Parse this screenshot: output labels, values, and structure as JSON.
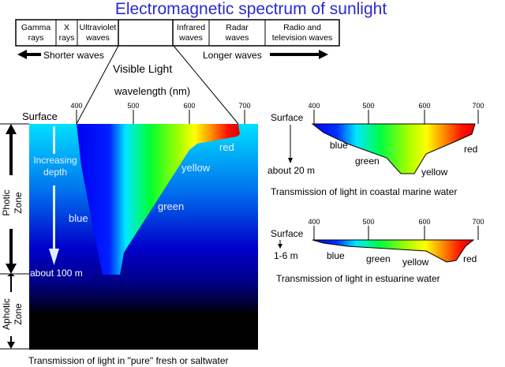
{
  "title": "Electromagnetic spectrum of sunlight",
  "spectrum_bands": [
    [
      "Gamma",
      "rays"
    ],
    [
      "X",
      "rays"
    ],
    [
      "Ultraviolet",
      "waves"
    ],
    [
      "",
      ""
    ],
    [
      "Infrared",
      "waves"
    ],
    [
      "Radar",
      "waves"
    ],
    [
      "Radio and",
      "television waves"
    ]
  ],
  "shorter_label": "Shorter waves",
  "longer_label": "Longer waves",
  "visible_label": "Visible Light",
  "wavelength_label": "wavelength (nm)",
  "ticks": [
    "400",
    "500",
    "600",
    "700"
  ],
  "main": {
    "surface": "Surface",
    "increasing": "Increasing",
    "depth": "depth",
    "depth_label": "about 100 m",
    "photic": "Photic",
    "photic_zone": "Zone",
    "aphotic": "Aphotic",
    "aphotic_zone": "Zone",
    "colors": {
      "blue": "blue",
      "green": "green",
      "yellow": "yellow",
      "red": "red"
    },
    "caption": "Transmission of light in \"pure\" fresh or saltwater"
  },
  "coastal": {
    "surface": "Surface",
    "depth_label": "about 20 m",
    "colors": {
      "blue": "blue",
      "green": "green",
      "yellow": "yellow",
      "red": "red"
    },
    "caption": "Transmission of light in coastal marine water"
  },
  "estuarine": {
    "surface": "Surface",
    "depth_label": "1-6 m",
    "colors": {
      "blue": "blue",
      "green": "green",
      "yellow": "yellow",
      "red": "red"
    },
    "caption": "Transmission of light in estuarine water"
  },
  "palette": {
    "title": "#2a2ad0",
    "water_top": "#00e0ff",
    "water_mid": "#0000d0",
    "deep": "#000000"
  }
}
